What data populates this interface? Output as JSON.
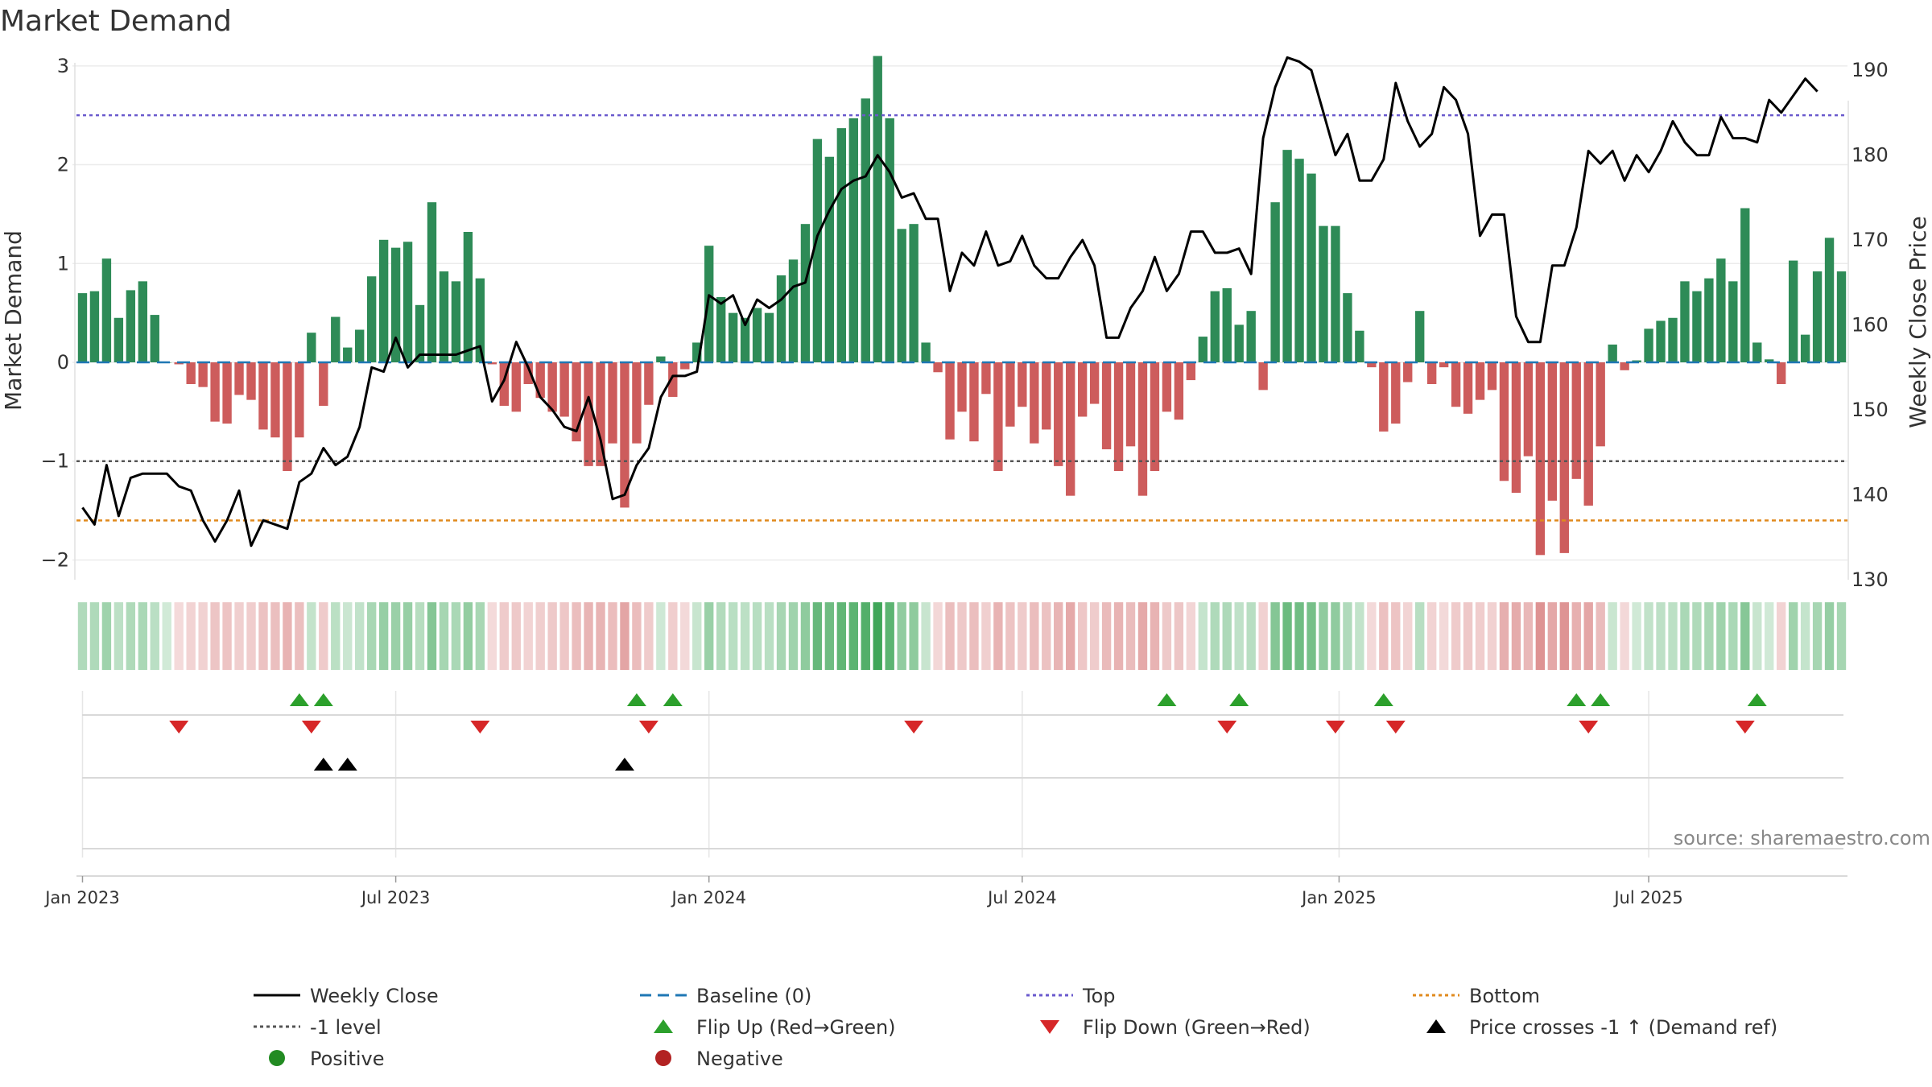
{
  "title": "Market Demand",
  "source": "source: sharemaestro.com",
  "colors": {
    "positive": "#2e8b57",
    "negative": "#cd5c5c",
    "price": "#000000",
    "baseline": "#1f77b4",
    "top": "#6a5acd",
    "bottom": "#e08a1e",
    "minus1": "#555555",
    "flip_up": "#2ca02c",
    "flip_down": "#d62728",
    "cross": "#000000",
    "legend_positive": "#228b22",
    "legend_negative": "#b22222"
  },
  "chart_data": {
    "type": "bar",
    "title": "Market Demand",
    "ylabel": "Market Demand",
    "y2label": "Weekly Close Price",
    "ylim": [
      -2.2,
      3.3
    ],
    "y2lim": [
      130,
      194
    ],
    "yticks": [
      "3",
      "2",
      "1",
      "0",
      "−1",
      "−2"
    ],
    "y2ticks": [
      "190",
      "180",
      "170",
      "160",
      "150",
      "140",
      "130"
    ],
    "xtick_labels": [
      "Jan 2023",
      "Jul 2023",
      "Jan 2024",
      "Jul 2024",
      "Jan 2025",
      "Jul 2025"
    ],
    "xtick_weeks": [
      0.5,
      26.5,
      52.5,
      78.5,
      104.8,
      130.5
    ],
    "top_level": 2.5,
    "bottom_level": -1.6,
    "minus1_level": -1.0,
    "baseline_level": 0,
    "series": [
      {
        "name": "Market Demand",
        "values": [
          0.7,
          0.72,
          1.05,
          0.45,
          0.73,
          0.82,
          0.48,
          0.0,
          -0.02,
          -0.22,
          -0.25,
          -0.6,
          -0.62,
          -0.33,
          -0.38,
          -0.68,
          -0.76,
          -1.1,
          -0.76,
          0.3,
          -0.44,
          0.46,
          0.15,
          0.33,
          0.87,
          1.24,
          1.16,
          1.22,
          0.58,
          1.62,
          0.92,
          0.82,
          1.32,
          0.85,
          -0.02,
          -0.44,
          -0.5,
          -0.22,
          -0.36,
          -0.5,
          -0.55,
          -0.8,
          -1.05,
          -1.05,
          -0.82,
          -1.47,
          -0.82,
          -0.43,
          0.06,
          -0.35,
          -0.07,
          0.2,
          1.18,
          0.66,
          0.5,
          0.45,
          0.55,
          0.5,
          0.88,
          1.04,
          1.4,
          2.26,
          2.08,
          2.37,
          2.47,
          2.67,
          3.1,
          2.47,
          1.35,
          1.4,
          0.2,
          -0.1,
          -0.78,
          -0.5,
          -0.8,
          -0.32,
          -1.1,
          -0.65,
          -0.45,
          -0.82,
          -0.68,
          -1.05,
          -1.35,
          -0.55,
          -0.42,
          -0.88,
          -1.1,
          -0.85,
          -1.35,
          -1.1,
          -0.5,
          -0.58,
          -0.18,
          0.26,
          0.72,
          0.75,
          0.38,
          0.52,
          -0.28,
          1.62,
          2.15,
          2.06,
          1.91,
          1.38,
          1.38,
          0.7,
          0.32,
          -0.05,
          -0.7,
          -0.62,
          -0.2,
          0.52,
          -0.22,
          -0.05,
          -0.45,
          -0.52,
          -0.38,
          -0.28,
          -1.2,
          -1.32,
          -0.95,
          -1.95,
          -1.4,
          -1.93,
          -1.18,
          -1.45,
          -0.85,
          0.18,
          -0.08,
          0.02,
          0.34,
          0.42,
          0.45,
          0.82,
          0.72,
          0.85,
          1.05,
          0.82,
          1.56,
          0.2,
          0.03,
          -0.22,
          1.03,
          0.28,
          0.92,
          1.26,
          0.92
        ]
      },
      {
        "name": "Weekly Close",
        "values": [
          138.5,
          136.5,
          143.5,
          137.5,
          142,
          142.5,
          142.5,
          142.5,
          141,
          140.5,
          137,
          134.5,
          137,
          140.5,
          134,
          137,
          136.5,
          136,
          141.5,
          142.5,
          145.5,
          143.5,
          144.5,
          148,
          155,
          154.5,
          158.5,
          155,
          156.5,
          156.5,
          156.5,
          156.5,
          157,
          157.5,
          151,
          153.5,
          158,
          155,
          151.5,
          150,
          148,
          147.5,
          151.5,
          146.5,
          139.5,
          140,
          143.5,
          145.5,
          151.5,
          154,
          154,
          154.5,
          163.5,
          162.5,
          163.5,
          160,
          163,
          162,
          163,
          164.5,
          165,
          170.5,
          173.5,
          176,
          177,
          177.5,
          180,
          178,
          175,
          175.5,
          172.5,
          172.5,
          164,
          168.5,
          167,
          171,
          167,
          167.5,
          170.5,
          167,
          165.5,
          165.5,
          168,
          170,
          167,
          158.5,
          158.5,
          162,
          164,
          168,
          164,
          166,
          171,
          171,
          168.5,
          168.5,
          169,
          166,
          182,
          188,
          191.5,
          191,
          190,
          185,
          180,
          182.5,
          177,
          177,
          179.5,
          188.5,
          184,
          181,
          182.5,
          188,
          186.5,
          182.5,
          170.5,
          173,
          173,
          161,
          158,
          158,
          167,
          167,
          171.5,
          180.5,
          179,
          180.5,
          177,
          180,
          178,
          180.5,
          184,
          181.5,
          180,
          180,
          184.5,
          182,
          182,
          181.5,
          186.5,
          185,
          187,
          189,
          187.5
        ]
      }
    ],
    "heat_strip": "weekly demand shade per week (green positive / red negative)",
    "flip_up_weeks": [
      18,
      20,
      46,
      49,
      90,
      96,
      108,
      124,
      126,
      139
    ],
    "flip_down_weeks": [
      8,
      19,
      33,
      47,
      69,
      95,
      104,
      109,
      125,
      138
    ],
    "cross_weeks": [
      20,
      22,
      45
    ]
  },
  "legend": [
    {
      "label": "Weekly Close",
      "kind": "line-solid",
      "color": "#000000"
    },
    {
      "label": "Baseline (0)",
      "kind": "line-dashed",
      "color": "#1f77b4"
    },
    {
      "label": "Top",
      "kind": "line-dotted",
      "color": "#6a5acd"
    },
    {
      "label": "Bottom",
      "kind": "line-dotted",
      "color": "#e08a1e"
    },
    {
      "label": "-1 level",
      "kind": "line-dotted",
      "color": "#555555"
    },
    {
      "label": "Flip Up (Red→Green)",
      "kind": "tri-up",
      "color": "#2ca02c"
    },
    {
      "label": "Flip Down (Green→Red)",
      "kind": "tri-down",
      "color": "#d62728"
    },
    {
      "label": "Price crosses -1 ↑ (Demand ref)",
      "kind": "tri-up",
      "color": "#000000"
    },
    {
      "label": "Positive",
      "kind": "dot",
      "color": "#228b22"
    },
    {
      "label": "Negative",
      "kind": "dot",
      "color": "#b22222"
    }
  ]
}
